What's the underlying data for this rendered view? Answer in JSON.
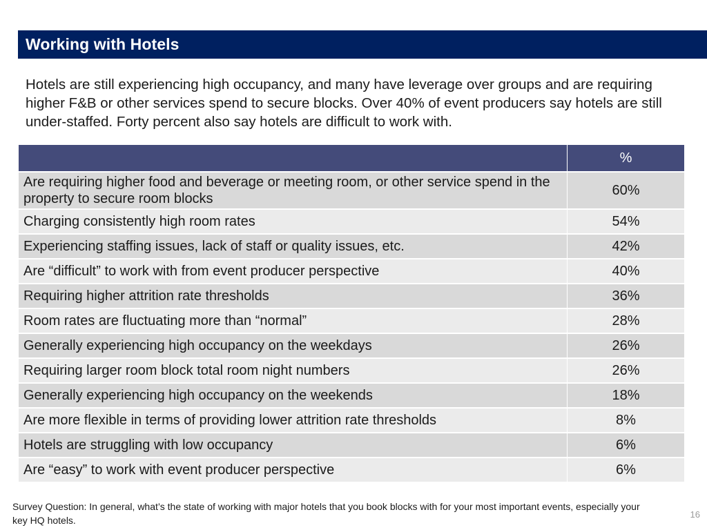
{
  "slide": {
    "title": "Working with Hotels",
    "intro": "Hotels are still experiencing high occupancy, and many have leverage over groups and are requiring higher F&B or other services spend to secure blocks. Over 40% of event producers say hotels are still under-staffed. Forty percent also say hotels are difficult to work with.",
    "page_number": "16",
    "footnote": "Survey Question: In general, what’s the state of working with major hotels that you book blocks with for your most important events, especially your key HQ hotels.",
    "colors": {
      "title_bar": "#002060",
      "table_header": "#444b7a",
      "row_dark": "#d9d9d9",
      "row_light": "#ebebeb"
    }
  },
  "table": {
    "header": {
      "label": "",
      "percent": "%"
    },
    "rows": [
      {
        "label": "Are requiring higher food and beverage or meeting room, or other service spend in the property to secure room blocks",
        "value": "60%"
      },
      {
        "label": "Charging consistently high room rates",
        "value": "54%"
      },
      {
        "label": "Experiencing staffing issues, lack of staff or quality issues, etc.",
        "value": "42%"
      },
      {
        "label": "Are “difficult” to work with from event producer perspective",
        "value": "40%"
      },
      {
        "label": "Requiring higher attrition rate thresholds",
        "value": "36%"
      },
      {
        "label": "Room rates are fluctuating more than “normal”",
        "value": "28%"
      },
      {
        "label": "Generally experiencing high occupancy on the weekdays",
        "value": "26%"
      },
      {
        "label": "Requiring larger room block total room night numbers",
        "value": "26%"
      },
      {
        "label": "Generally experiencing high occupancy on the weekends",
        "value": "18%"
      },
      {
        "label": "Are more flexible in terms of providing lower attrition rate thresholds",
        "value": "8%"
      },
      {
        "label": "Hotels are struggling with low occupancy",
        "value": "6%"
      },
      {
        "label": "Are “easy” to work with event producer perspective",
        "value": "6%"
      }
    ]
  }
}
